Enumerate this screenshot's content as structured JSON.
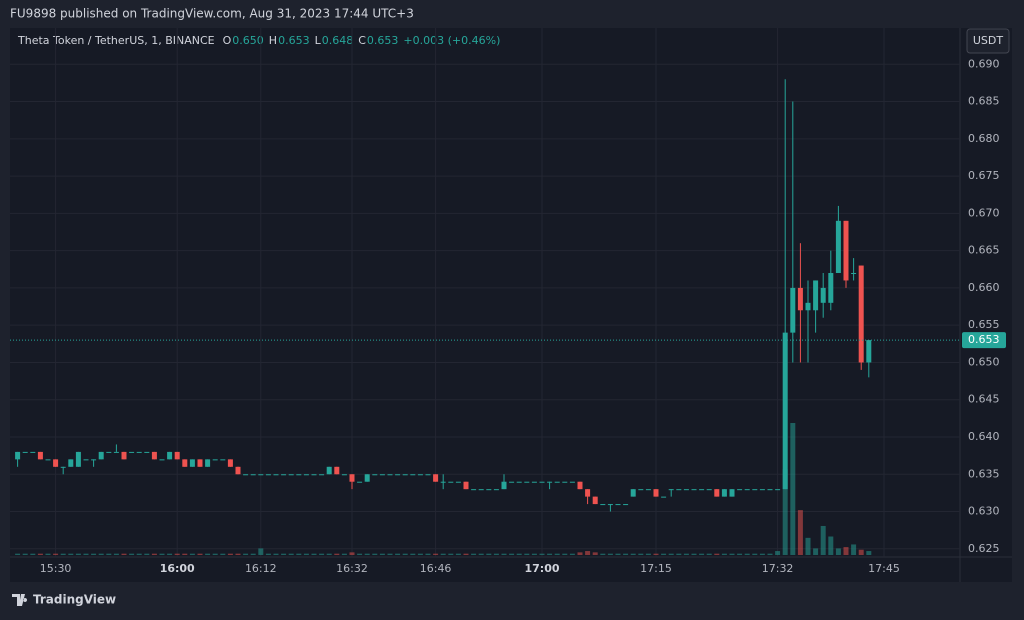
{
  "header": {
    "publisher": "FU9898 published on TradingView.com, Aug 31, 2023 17:44 UTC+3",
    "footer": "TradingView"
  },
  "legend": {
    "symbol": "Theta Token / TetherUS, 1, BINANCE",
    "o_label": "O",
    "o": "0.650",
    "h_label": "H",
    "h": "0.653",
    "l_label": "L",
    "l": "0.648",
    "c_label": "C",
    "c": "0.653",
    "change": "+0.003 (+0.46%)"
  },
  "currency": "USDT",
  "chart_data": {
    "type": "candlestick",
    "up_color": "#26a69a",
    "down_color": "#ef5350",
    "grid": true,
    "xlim": [
      -1,
      124
    ],
    "ylim": [
      0.6239,
      0.6946
    ],
    "yticks": [
      0.625,
      {
        "value": 0.63,
        "label": "0.630"
      },
      0.635,
      {
        "value": 0.64,
        "label": "0.640"
      },
      0.645,
      {
        "value": 0.65,
        "label": "0.650"
      },
      0.655,
      {
        "value": 0.66,
        "label": "0.660"
      },
      0.665,
      {
        "value": 0.67,
        "label": "0.670"
      },
      0.675,
      {
        "value": 0.68,
        "label": "0.680"
      },
      0.685,
      {
        "value": 0.69,
        "label": "0.690"
      }
    ],
    "xticks": [
      {
        "value": 5,
        "label": "15:30"
      },
      {
        "value": 21,
        "label": "16:00",
        "major": true
      },
      {
        "value": 32,
        "label": "16:12"
      },
      {
        "value": 44,
        "label": "16:32"
      },
      {
        "value": 55,
        "label": "16:46"
      },
      {
        "value": 69,
        "label": "17:00",
        "major": true
      },
      {
        "value": 84,
        "label": "17:15"
      },
      {
        "value": 100,
        "label": "17:32"
      },
      {
        "value": 114,
        "label": "17:45"
      }
    ],
    "last_price": {
      "value": 0.653,
      "label": "0.653"
    },
    "candles": [
      [
        0.637,
        0.638,
        0.636,
        0.638
      ],
      [
        0.638,
        0.638,
        0.638,
        0.638
      ],
      [
        0.638,
        0.638,
        0.638,
        0.638
      ],
      [
        0.638,
        0.638,
        0.637,
        0.637
      ],
      [
        0.637,
        0.637,
        0.637,
        0.637
      ],
      [
        0.637,
        0.637,
        0.636,
        0.636
      ],
      [
        0.636,
        0.636,
        0.635,
        0.636
      ],
      [
        0.636,
        0.637,
        0.636,
        0.637
      ],
      [
        0.636,
        0.638,
        0.636,
        0.638
      ],
      [
        0.637,
        0.637,
        0.637,
        0.637
      ],
      [
        0.637,
        0.637,
        0.636,
        0.637
      ],
      [
        0.637,
        0.638,
        0.637,
        0.638
      ],
      [
        0.638,
        0.638,
        0.638,
        0.638
      ],
      [
        0.638,
        0.639,
        0.638,
        0.638
      ],
      [
        0.638,
        0.638,
        0.637,
        0.637
      ],
      [
        0.638,
        0.638,
        0.638,
        0.638
      ],
      [
        0.638,
        0.638,
        0.638,
        0.638
      ],
      [
        0.638,
        0.638,
        0.638,
        0.638
      ],
      [
        0.638,
        0.638,
        0.637,
        0.637
      ],
      [
        0.637,
        0.637,
        0.637,
        0.637
      ],
      [
        0.637,
        0.638,
        0.637,
        0.638
      ],
      [
        0.638,
        0.638,
        0.637,
        0.637
      ],
      [
        0.637,
        0.637,
        0.636,
        0.636
      ],
      [
        0.636,
        0.637,
        0.636,
        0.637
      ],
      [
        0.637,
        0.637,
        0.636,
        0.636
      ],
      [
        0.636,
        0.637,
        0.636,
        0.637
      ],
      [
        0.637,
        0.637,
        0.637,
        0.637
      ],
      [
        0.637,
        0.637,
        0.637,
        0.637
      ],
      [
        0.637,
        0.637,
        0.636,
        0.636
      ],
      [
        0.636,
        0.636,
        0.635,
        0.635
      ],
      [
        0.635,
        0.635,
        0.635,
        0.635
      ],
      [
        0.635,
        0.635,
        0.635,
        0.635
      ],
      [
        0.635,
        0.635,
        0.635,
        0.635
      ],
      [
        0.635,
        0.635,
        0.635,
        0.635
      ],
      [
        0.635,
        0.635,
        0.635,
        0.635
      ],
      [
        0.635,
        0.635,
        0.635,
        0.635
      ],
      [
        0.635,
        0.635,
        0.635,
        0.635
      ],
      [
        0.635,
        0.635,
        0.635,
        0.635
      ],
      [
        0.635,
        0.635,
        0.635,
        0.635
      ],
      [
        0.635,
        0.635,
        0.635,
        0.635
      ],
      [
        0.635,
        0.635,
        0.635,
        0.635
      ],
      [
        0.635,
        0.636,
        0.635,
        0.636
      ],
      [
        0.636,
        0.636,
        0.635,
        0.635
      ],
      [
        0.635,
        0.635,
        0.635,
        0.635
      ],
      [
        0.635,
        0.635,
        0.633,
        0.634
      ],
      [
        0.634,
        0.634,
        0.634,
        0.634
      ],
      [
        0.634,
        0.635,
        0.634,
        0.635
      ],
      [
        0.635,
        0.635,
        0.635,
        0.635
      ],
      [
        0.635,
        0.635,
        0.635,
        0.635
      ],
      [
        0.635,
        0.635,
        0.635,
        0.635
      ],
      [
        0.635,
        0.635,
        0.635,
        0.635
      ],
      [
        0.635,
        0.635,
        0.635,
        0.635
      ],
      [
        0.635,
        0.635,
        0.635,
        0.635
      ],
      [
        0.635,
        0.635,
        0.635,
        0.635
      ],
      [
        0.635,
        0.635,
        0.635,
        0.635
      ],
      [
        0.635,
        0.635,
        0.634,
        0.634
      ],
      [
        0.634,
        0.635,
        0.633,
        0.634
      ],
      [
        0.634,
        0.634,
        0.634,
        0.634
      ],
      [
        0.634,
        0.634,
        0.634,
        0.634
      ],
      [
        0.634,
        0.634,
        0.633,
        0.633
      ],
      [
        0.633,
        0.633,
        0.633,
        0.633
      ],
      [
        0.633,
        0.633,
        0.633,
        0.633
      ],
      [
        0.633,
        0.633,
        0.633,
        0.633
      ],
      [
        0.633,
        0.633,
        0.633,
        0.633
      ],
      [
        0.633,
        0.635,
        0.633,
        0.634
      ],
      [
        0.634,
        0.634,
        0.634,
        0.634
      ],
      [
        0.634,
        0.634,
        0.634,
        0.634
      ],
      [
        0.634,
        0.634,
        0.634,
        0.634
      ],
      [
        0.634,
        0.634,
        0.634,
        0.634
      ],
      [
        0.634,
        0.634,
        0.634,
        0.634
      ],
      [
        0.634,
        0.634,
        0.633,
        0.634
      ],
      [
        0.634,
        0.634,
        0.634,
        0.634
      ],
      [
        0.634,
        0.634,
        0.634,
        0.634
      ],
      [
        0.634,
        0.634,
        0.634,
        0.634
      ],
      [
        0.634,
        0.634,
        0.633,
        0.633
      ],
      [
        0.633,
        0.633,
        0.631,
        0.632
      ],
      [
        0.632,
        0.632,
        0.631,
        0.631
      ],
      [
        0.631,
        0.631,
        0.631,
        0.631
      ],
      [
        0.631,
        0.631,
        0.63,
        0.631
      ],
      [
        0.631,
        0.631,
        0.631,
        0.631
      ],
      [
        0.631,
        0.631,
        0.631,
        0.631
      ],
      [
        0.632,
        0.633,
        0.632,
        0.633
      ],
      [
        0.633,
        0.633,
        0.633,
        0.633
      ],
      [
        0.633,
        0.633,
        0.633,
        0.633
      ],
      [
        0.633,
        0.633,
        0.632,
        0.632
      ],
      [
        0.632,
        0.632,
        0.632,
        0.632
      ],
      [
        0.633,
        0.633,
        0.632,
        0.633
      ],
      [
        0.633,
        0.633,
        0.633,
        0.633
      ],
      [
        0.633,
        0.633,
        0.633,
        0.633
      ],
      [
        0.633,
        0.633,
        0.633,
        0.633
      ],
      [
        0.633,
        0.633,
        0.633,
        0.633
      ],
      [
        0.633,
        0.633,
        0.633,
        0.633
      ],
      [
        0.633,
        0.633,
        0.632,
        0.632
      ],
      [
        0.632,
        0.633,
        0.632,
        0.633
      ],
      [
        0.632,
        0.633,
        0.632,
        0.633
      ],
      [
        0.633,
        0.633,
        0.633,
        0.633
      ],
      [
        0.633,
        0.633,
        0.633,
        0.633
      ],
      [
        0.633,
        0.633,
        0.633,
        0.633
      ],
      [
        0.633,
        0.633,
        0.633,
        0.633
      ],
      [
        0.633,
        0.633,
        0.633,
        0.633
      ],
      [
        0.633,
        0.633,
        0.633,
        0.633
      ],
      [
        0.633,
        0.688,
        0.633,
        0.654
      ],
      [
        0.654,
        0.685,
        0.65,
        0.66
      ],
      [
        0.66,
        0.666,
        0.65,
        0.657
      ],
      [
        0.657,
        0.661,
        0.65,
        0.658
      ],
      [
        0.657,
        0.661,
        0.654,
        0.661
      ],
      [
        0.658,
        0.662,
        0.656,
        0.66
      ],
      [
        0.658,
        0.665,
        0.657,
        0.662
      ],
      [
        0.662,
        0.671,
        0.662,
        0.669
      ],
      [
        0.669,
        0.669,
        0.66,
        0.661
      ],
      [
        0.662,
        0.664,
        0.661,
        0.662
      ],
      [
        0.663,
        0.663,
        0.649,
        0.65
      ],
      [
        0.65,
        0.653,
        0.648,
        0.653
      ]
    ],
    "volumes": [
      1,
      1,
      1,
      1,
      1,
      1,
      1,
      1,
      1,
      1,
      1,
      1,
      1,
      1,
      1,
      1,
      1,
      1,
      1,
      1,
      1,
      1,
      1,
      1,
      1,
      1,
      1,
      1,
      1,
      1,
      1,
      1,
      5,
      1,
      1,
      1,
      1,
      1,
      1,
      1,
      1,
      1,
      1,
      1,
      2,
      1,
      1,
      1,
      1,
      1,
      1,
      1,
      1,
      1,
      1,
      1,
      1,
      1,
      1,
      1,
      1,
      1,
      1,
      1,
      1,
      1,
      1,
      1,
      1,
      1,
      1,
      1,
      1,
      1,
      2,
      3,
      2,
      1,
      1,
      1,
      1,
      1,
      1,
      1,
      1,
      1,
      1,
      1,
      1,
      1,
      1,
      1,
      1,
      1,
      1,
      1,
      1,
      1,
      1,
      1,
      3,
      65,
      100,
      34,
      13,
      5,
      22,
      14,
      5,
      6,
      8,
      4,
      3
    ]
  }
}
